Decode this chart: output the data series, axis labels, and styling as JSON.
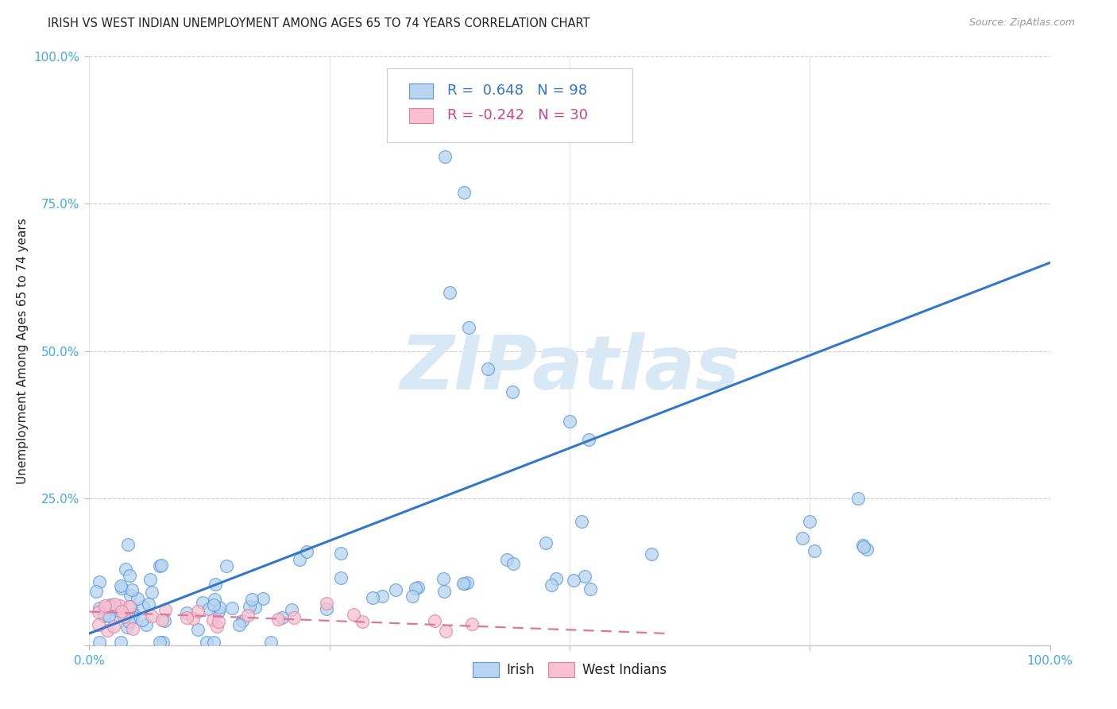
{
  "title": "IRISH VS WEST INDIAN UNEMPLOYMENT AMONG AGES 65 TO 74 YEARS CORRELATION CHART",
  "source": "Source: ZipAtlas.com",
  "ylabel": "Unemployment Among Ages 65 to 74 years",
  "irish_R": 0.648,
  "irish_N": 98,
  "west_indian_R": -0.242,
  "west_indian_N": 30,
  "irish_scatter_color": "#b8d4f0",
  "irish_edge_color": "#5599dd",
  "wi_scatter_color": "#f8c0d0",
  "wi_edge_color": "#e080a0",
  "irish_line_color": "#3377cc",
  "wi_line_color": "#dd7799",
  "grid_color": "#cccccc",
  "title_color": "#222222",
  "axis_tick_color": "#44aadd",
  "source_color": "#999999",
  "background_color": "#ffffff",
  "watermark_color": "#d8e8f4",
  "legend_text_color_irish": "#3377cc",
  "legend_text_color_wi": "#cc4488",
  "legend_label_irish": "R =  0.648   N = 98",
  "legend_label_wi": "R = -0.242   N = 30"
}
